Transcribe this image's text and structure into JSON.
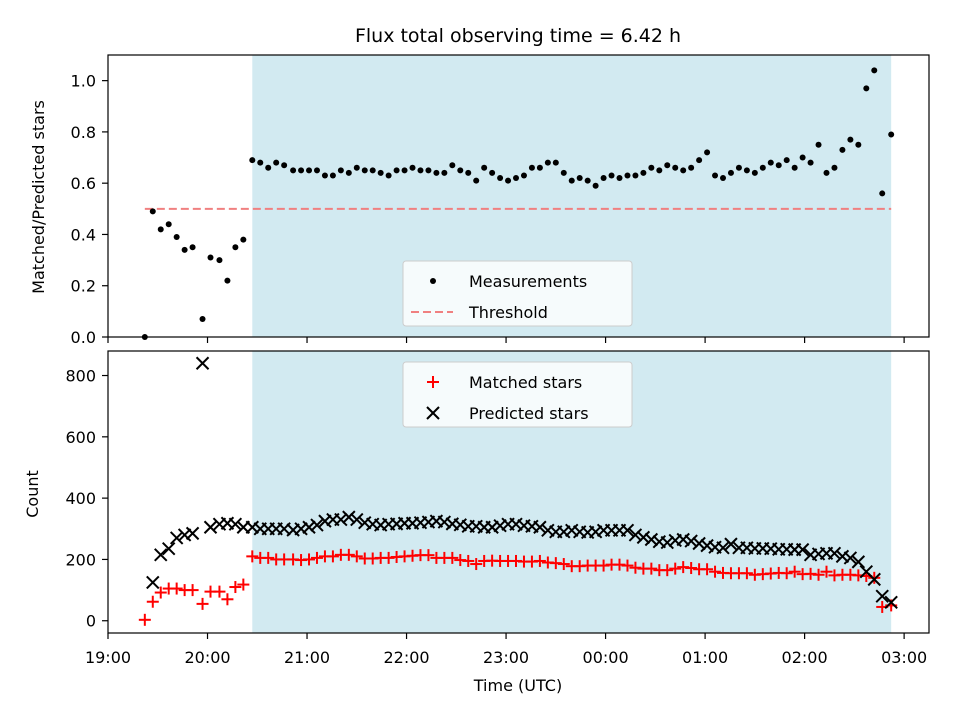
{
  "chart_data": [
    {
      "type": "scatter",
      "title": "Flux total observing time = 6.42 h",
      "xlabel": "",
      "ylabel": "Matched/Predicted stars",
      "xlim_hours": [
        19.0,
        27.25
      ],
      "ylim": [
        0,
        1.1
      ],
      "yticks": [
        0.0,
        0.2,
        0.4,
        0.6,
        0.8,
        1.0
      ],
      "ytick_labels": [
        "0.0",
        "0.2",
        "0.4",
        "0.6",
        "0.8",
        "1.0"
      ],
      "shaded_span": [
        20.45,
        26.87
      ],
      "shade_color": "#add8e6",
      "legend": {
        "placement": "lower center",
        "entries": [
          "Measurements",
          "Threshold"
        ]
      },
      "threshold": {
        "name": "Threshold",
        "value": 0.5,
        "x_range": [
          19.37,
          26.87
        ],
        "color": "#f08080",
        "style": "dashed"
      },
      "series": [
        {
          "name": "Measurements",
          "color": "#000000",
          "marker": "dot",
          "x": [
            19.37,
            19.45,
            19.53,
            19.61,
            19.69,
            19.77,
            19.85,
            19.95,
            20.03,
            20.12,
            20.2,
            20.28,
            20.36,
            20.45,
            20.53,
            20.61,
            20.69,
            20.77,
            20.86,
            20.94,
            21.02,
            21.1,
            21.18,
            21.26,
            21.34,
            21.42,
            21.5,
            21.58,
            21.66,
            21.74,
            21.82,
            21.9,
            21.98,
            22.06,
            22.14,
            22.22,
            22.3,
            22.38,
            22.46,
            22.54,
            22.62,
            22.7,
            22.78,
            22.86,
            22.94,
            23.02,
            23.1,
            23.18,
            23.26,
            23.34,
            23.42,
            23.5,
            23.58,
            23.66,
            23.74,
            23.82,
            23.9,
            23.98,
            24.06,
            24.14,
            24.22,
            24.3,
            24.38,
            24.46,
            24.54,
            24.62,
            24.7,
            24.78,
            24.86,
            24.94,
            25.02,
            25.1,
            25.18,
            25.26,
            25.34,
            25.42,
            25.5,
            25.58,
            25.66,
            25.74,
            25.82,
            25.9,
            25.98,
            26.06,
            26.14,
            26.22,
            26.3,
            26.38,
            26.46,
            26.54,
            26.62,
            26.7,
            26.78,
            26.87
          ],
          "y": [
            0.0,
            0.49,
            0.42,
            0.44,
            0.39,
            0.34,
            0.35,
            0.07,
            0.31,
            0.3,
            0.22,
            0.35,
            0.38,
            0.69,
            0.68,
            0.66,
            0.68,
            0.67,
            0.65,
            0.65,
            0.65,
            0.65,
            0.63,
            0.63,
            0.65,
            0.64,
            0.66,
            0.65,
            0.65,
            0.64,
            0.63,
            0.65,
            0.65,
            0.66,
            0.65,
            0.65,
            0.64,
            0.64,
            0.67,
            0.65,
            0.64,
            0.61,
            0.66,
            0.64,
            0.62,
            0.61,
            0.62,
            0.63,
            0.66,
            0.66,
            0.68,
            0.68,
            0.64,
            0.61,
            0.62,
            0.61,
            0.59,
            0.62,
            0.63,
            0.62,
            0.63,
            0.63,
            0.64,
            0.66,
            0.65,
            0.67,
            0.66,
            0.65,
            0.66,
            0.69,
            0.72,
            0.63,
            0.62,
            0.64,
            0.66,
            0.65,
            0.64,
            0.66,
            0.68,
            0.67,
            0.69,
            0.66,
            0.7,
            0.68,
            0.75,
            0.64,
            0.66,
            0.73,
            0.77,
            0.75,
            0.97,
            1.04,
            0.56,
            0.79
          ]
        }
      ]
    },
    {
      "type": "scatter",
      "title": "",
      "xlabel": "Time (UTC)",
      "ylabel": "Count",
      "xlim_hours": [
        19.0,
        27.25
      ],
      "xticks_hours": [
        19,
        20,
        21,
        22,
        23,
        24,
        25,
        26,
        27
      ],
      "xtick_labels": [
        "19:00",
        "20:00",
        "21:00",
        "22:00",
        "23:00",
        "00:00",
        "01:00",
        "02:00",
        "03:00"
      ],
      "ylim": [
        -40,
        880
      ],
      "yticks": [
        0,
        200,
        400,
        600,
        800
      ],
      "ytick_labels": [
        "0",
        "200",
        "400",
        "600",
        "800"
      ],
      "shaded_span": [
        20.45,
        26.87
      ],
      "shade_color": "#add8e6",
      "legend": {
        "placement": "upper center",
        "entries": [
          "Matched stars",
          "Predicted stars"
        ]
      },
      "series": [
        {
          "name": "Matched stars",
          "color": "#ff0000",
          "marker": "plus",
          "x": [
            19.37,
            19.45,
            19.53,
            19.61,
            19.69,
            19.77,
            19.85,
            19.95,
            20.03,
            20.12,
            20.2,
            20.28,
            20.36,
            20.45,
            20.53,
            20.61,
            20.69,
            20.77,
            20.86,
            20.94,
            21.02,
            21.1,
            21.18,
            21.26,
            21.34,
            21.42,
            21.5,
            21.58,
            21.66,
            21.74,
            21.82,
            21.9,
            21.98,
            22.06,
            22.14,
            22.22,
            22.3,
            22.38,
            22.46,
            22.54,
            22.62,
            22.7,
            22.78,
            22.86,
            22.94,
            23.02,
            23.1,
            23.18,
            23.26,
            23.34,
            23.42,
            23.5,
            23.58,
            23.66,
            23.74,
            23.82,
            23.9,
            23.98,
            24.06,
            24.14,
            24.22,
            24.3,
            24.38,
            24.46,
            24.54,
            24.62,
            24.7,
            24.78,
            24.86,
            24.94,
            25.02,
            25.1,
            25.18,
            25.26,
            25.34,
            25.42,
            25.5,
            25.58,
            25.66,
            25.74,
            25.82,
            25.9,
            25.98,
            26.06,
            26.14,
            26.22,
            26.3,
            26.38,
            26.46,
            26.54,
            26.62,
            26.7,
            26.78,
            26.87
          ],
          "y": [
            3,
            62,
            92,
            105,
            105,
            100,
            100,
            55,
            95,
            95,
            70,
            110,
            118,
            210,
            205,
            205,
            200,
            200,
            200,
            198,
            200,
            205,
            210,
            210,
            215,
            215,
            210,
            203,
            203,
            205,
            205,
            208,
            210,
            212,
            214,
            214,
            205,
            205,
            205,
            198,
            195,
            185,
            195,
            196,
            195,
            195,
            195,
            193,
            193,
            195,
            190,
            188,
            185,
            178,
            178,
            180,
            180,
            180,
            183,
            183,
            180,
            173,
            170,
            170,
            165,
            165,
            170,
            175,
            172,
            168,
            168,
            160,
            156,
            155,
            155,
            155,
            150,
            152,
            154,
            156,
            155,
            160,
            152,
            153,
            150,
            160,
            148,
            150,
            150,
            148,
            146,
            140,
            45,
            50
          ]
        },
        {
          "name": "Predicted stars",
          "color": "#000000",
          "marker": "x",
          "x": [
            19.45,
            19.53,
            19.61,
            19.69,
            19.77,
            19.85,
            19.95,
            20.03,
            20.12,
            20.2,
            20.28,
            20.36,
            20.45,
            20.53,
            20.61,
            20.69,
            20.77,
            20.86,
            20.94,
            21.02,
            21.1,
            21.18,
            21.26,
            21.34,
            21.42,
            21.5,
            21.58,
            21.66,
            21.74,
            21.82,
            21.9,
            21.98,
            22.06,
            22.14,
            22.22,
            22.3,
            22.38,
            22.46,
            22.54,
            22.62,
            22.7,
            22.78,
            22.86,
            22.94,
            23.02,
            23.1,
            23.18,
            23.26,
            23.34,
            23.42,
            23.5,
            23.58,
            23.66,
            23.74,
            23.82,
            23.9,
            23.98,
            24.06,
            24.14,
            24.22,
            24.3,
            24.38,
            24.46,
            24.54,
            24.62,
            24.7,
            24.78,
            24.86,
            24.94,
            25.02,
            25.1,
            25.18,
            25.26,
            25.34,
            25.42,
            25.5,
            25.58,
            25.66,
            25.74,
            25.82,
            25.9,
            25.98,
            26.06,
            26.14,
            26.22,
            26.3,
            26.38,
            26.46,
            26.54,
            26.62,
            26.7,
            26.78,
            26.87
          ],
          "y": [
            125,
            215,
            235,
            270,
            280,
            285,
            840,
            305,
            315,
            318,
            315,
            305,
            305,
            300,
            300,
            300,
            300,
            296,
            300,
            305,
            312,
            325,
            330,
            330,
            338,
            330,
            320,
            315,
            312,
            315,
            316,
            318,
            318,
            320,
            322,
            325,
            322,
            316,
            313,
            308,
            308,
            305,
            305,
            310,
            315,
            315,
            310,
            308,
            305,
            295,
            290,
            290,
            295,
            290,
            288,
            290,
            295,
            295,
            295,
            295,
            280,
            272,
            265,
            258,
            255,
            262,
            265,
            260,
            252,
            245,
            240,
            238,
            250,
            238,
            238,
            236,
            236,
            235,
            233,
            233,
            232,
            232,
            215,
            218,
            220,
            220,
            210,
            205,
            192,
            160,
            135,
            80,
            60
          ]
        }
      ]
    }
  ]
}
